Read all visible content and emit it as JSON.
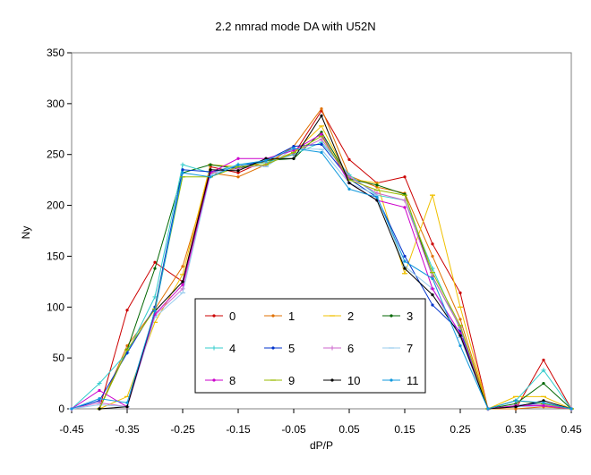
{
  "chart_data": {
    "type": "line",
    "title": "2.2 nmrad mode DA with U52N",
    "xlabel": "dP/P",
    "ylabel": "Ny",
    "xlim": [
      -0.45,
      0.45
    ],
    "ylim": [
      0,
      350
    ],
    "x_ticks": [
      "-0.45",
      "-0.35",
      "-0.25",
      "-0.15",
      "-0.05",
      "0.05",
      "0.15",
      "0.25",
      "0.35",
      "0.45"
    ],
    "y_ticks": [
      "0",
      "50",
      "100",
      "150",
      "200",
      "250",
      "300",
      "350"
    ],
    "grid": false,
    "legend_position": "bottom-center",
    "x": [
      -0.45,
      -0.4,
      -0.35,
      -0.3,
      -0.25,
      -0.2,
      -0.15,
      -0.1,
      -0.05,
      0.0,
      0.05,
      0.1,
      0.15,
      0.2,
      0.25,
      0.3,
      0.35,
      0.4,
      0.45
    ],
    "series": [
      {
        "name": "0",
        "color": "#CC0000",
        "marker": "dot",
        "values": [
          null,
          0,
          97,
          144,
          125,
          238,
          232,
          244,
          250,
          293,
          245,
          222,
          228,
          162,
          114,
          0,
          0,
          48,
          0
        ]
      },
      {
        "name": "1",
        "color": "#E07000",
        "marker": "dot",
        "values": [
          null,
          0,
          62,
          98,
          140,
          232,
          228,
          240,
          258,
          295,
          229,
          218,
          212,
          150,
          88,
          0,
          0,
          2,
          0
        ]
      },
      {
        "name": "2",
        "color": "#F0C000",
        "marker": "dash",
        "values": [
          null,
          0,
          12,
          85,
          132,
          240,
          238,
          242,
          252,
          278,
          226,
          222,
          133,
          210,
          100,
          0,
          12,
          12,
          0
        ]
      },
      {
        "name": "3",
        "color": "#006600",
        "marker": "dot",
        "values": [
          null,
          0,
          58,
          138,
          232,
          240,
          236,
          244,
          246,
          272,
          226,
          220,
          211,
          130,
          80,
          0,
          5,
          25,
          0
        ]
      },
      {
        "name": "4",
        "color": "#33CCCC",
        "marker": "plus",
        "values": [
          0,
          25,
          55,
          110,
          240,
          232,
          240,
          242,
          250,
          262,
          230,
          210,
          205,
          138,
          78,
          0,
          8,
          38,
          0
        ]
      },
      {
        "name": "5",
        "color": "#0033CC",
        "marker": "dot",
        "values": [
          0,
          8,
          55,
          100,
          235,
          233,
          238,
          244,
          258,
          260,
          226,
          208,
          150,
          102,
          76,
          0,
          3,
          6,
          0
        ]
      },
      {
        "name": "6",
        "color": "#CC66CC",
        "marker": "plus",
        "values": [
          0,
          6,
          2,
          92,
          118,
          232,
          236,
          240,
          252,
          265,
          228,
          212,
          205,
          130,
          80,
          0,
          3,
          4,
          0
        ]
      },
      {
        "name": "7",
        "color": "#99CCEE",
        "marker": "dash",
        "values": [
          0,
          4,
          2,
          90,
          114,
          230,
          240,
          238,
          256,
          255,
          222,
          210,
          140,
          118,
          70,
          0,
          2,
          3,
          0
        ]
      },
      {
        "name": "8",
        "color": "#CC00CC",
        "marker": "dot",
        "values": [
          0,
          18,
          2,
          93,
          122,
          232,
          246,
          246,
          254,
          270,
          222,
          205,
          198,
          118,
          74,
          0,
          3,
          3,
          0
        ]
      },
      {
        "name": "9",
        "color": "#99BB00",
        "marker": "dash",
        "values": [
          null,
          0,
          58,
          98,
          228,
          228,
          238,
          240,
          252,
          268,
          225,
          215,
          210,
          134,
          82,
          0,
          8,
          5,
          0
        ]
      },
      {
        "name": "10",
        "color": "#000000",
        "marker": "dot",
        "values": [
          null,
          0,
          2,
          96,
          125,
          235,
          234,
          246,
          246,
          288,
          222,
          205,
          138,
          112,
          72,
          0,
          2,
          8,
          0
        ]
      },
      {
        "name": "11",
        "color": "#1199DD",
        "marker": "dot",
        "values": [
          0,
          10,
          6,
          96,
          232,
          228,
          240,
          244,
          256,
          252,
          216,
          208,
          145,
          128,
          62,
          0,
          8,
          6,
          0
        ]
      }
    ]
  }
}
